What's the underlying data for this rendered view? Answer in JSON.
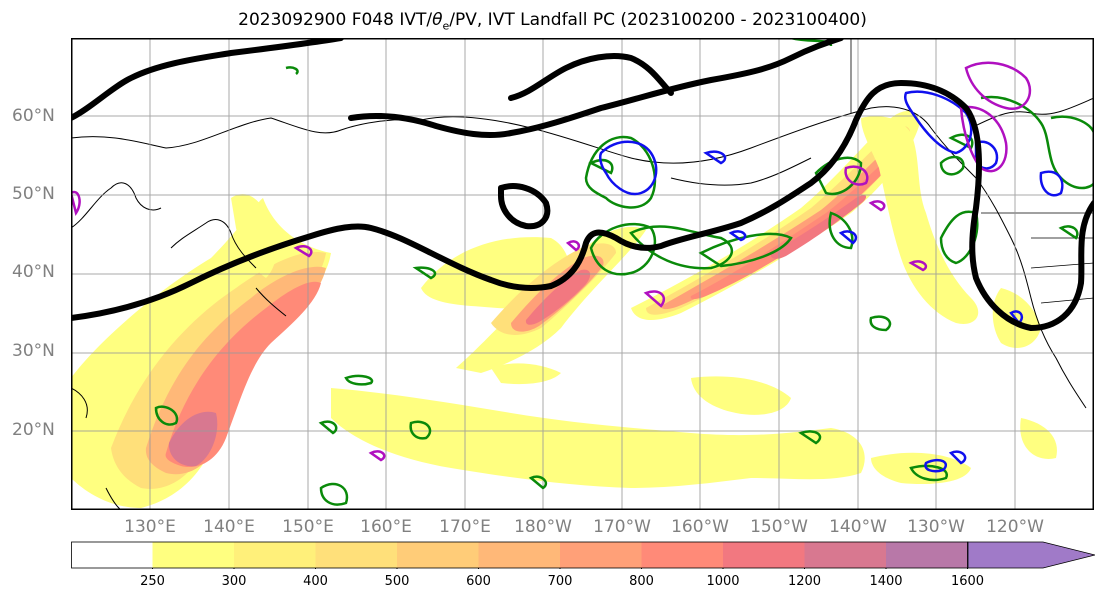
{
  "title": {
    "prefix": "2023092900 F048 IVT/",
    "theta": "θ",
    "theta_sub": "e",
    "suffix": "/PV, IVT Landfall PC (2023100200 - 2023100400)"
  },
  "map": {
    "projection": "PlateCarree (central longitude 180)",
    "lon_range": [
      "120°E",
      "115°W"
    ],
    "lat_range": [
      "10°N",
      "70°N"
    ],
    "lat_labels": [
      "60°N",
      "50°N",
      "40°N",
      "30°N",
      "20°N"
    ],
    "lon_labels": [
      "130°E",
      "140°E",
      "150°E",
      "160°E",
      "170°E",
      "180°W",
      "170°W",
      "160°W",
      "150°W",
      "140°W",
      "130°W",
      "120°W"
    ],
    "gridlines": true,
    "layers": [
      {
        "name": "IVT",
        "style": "filled contours (kg m-1 s-1)"
      },
      {
        "name": "PV",
        "style": "thick black contour"
      },
      {
        "name": "theta_e",
        "style": "green contours",
        "color": "#0a8a0a"
      },
      {
        "name": "landfall PC",
        "style": "blue contours",
        "color": "#1010ee"
      },
      {
        "name": "landfall PC (negative)",
        "style": "magenta contours",
        "color": "#b010c0"
      }
    ]
  },
  "colorbar": {
    "ticks": [
      "250",
      "300",
      "400",
      "500",
      "600",
      "700",
      "800",
      "1000",
      "1200",
      "1400",
      "1600"
    ],
    "colors": [
      "#ffffff",
      "#ffff80",
      "#fff07a",
      "#ffe07a",
      "#ffcc78",
      "#ffb878",
      "#ffa078",
      "#ff8a78",
      "#f27880",
      "#d87890",
      "#b878a8",
      "#a07ac8"
    ],
    "extend": "max"
  }
}
